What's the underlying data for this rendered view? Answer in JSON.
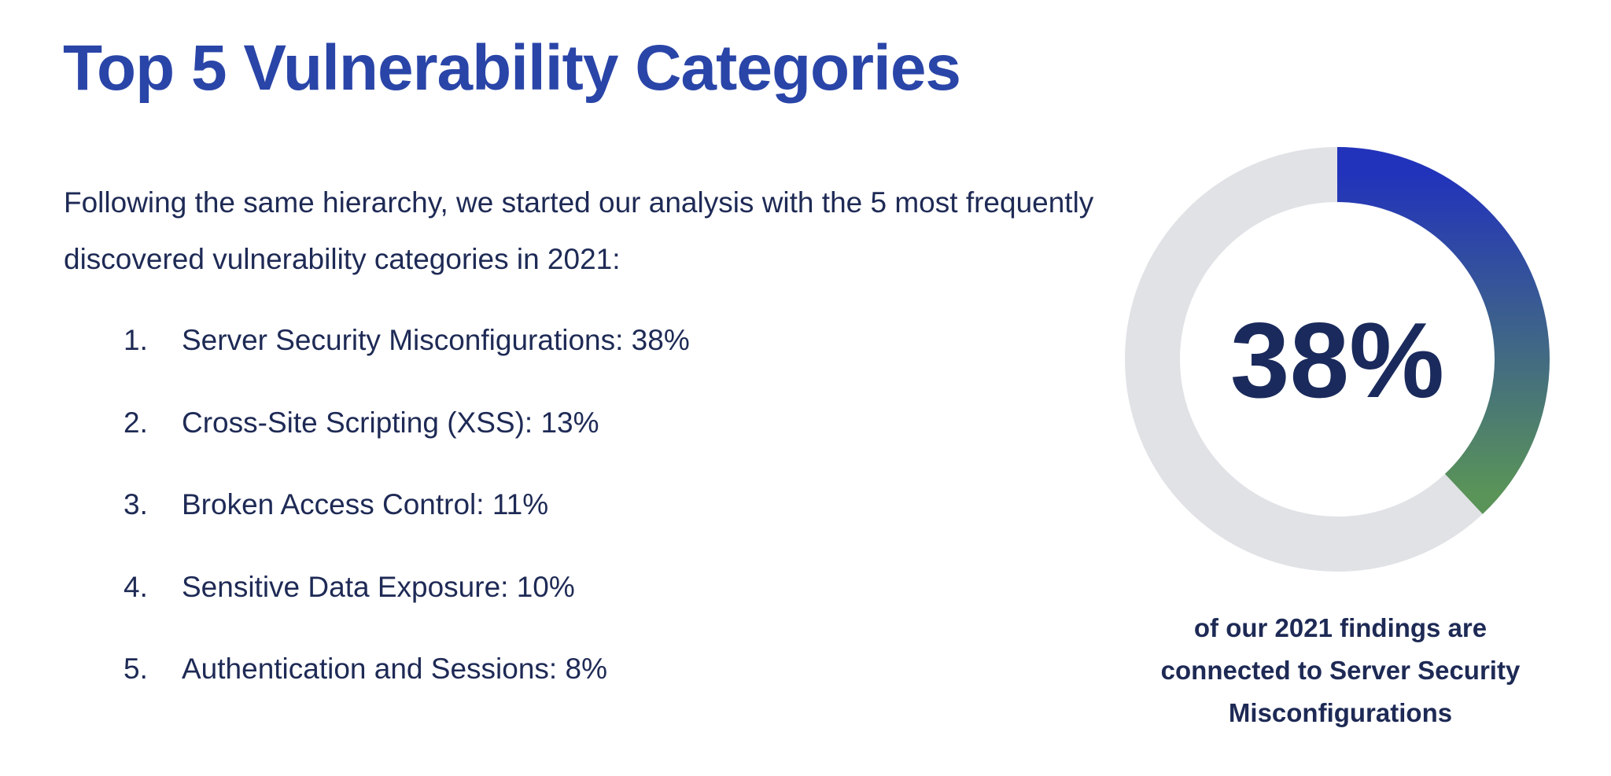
{
  "title": "Top 5 Vulnerability Categories",
  "intro": "Following the same hierarchy, we started our analysis with the 5 most frequently discovered vulnerability categories in 2021:",
  "list": [
    {
      "number": "1.",
      "text": "Server Security Misconfigurations: 38%"
    },
    {
      "number": "2.",
      "text": "Cross-Site Scripting (XSS): 13%"
    },
    {
      "number": "3.",
      "text": "Broken Access Control: 11%"
    },
    {
      "number": "4.",
      "text": "Sensitive Data Exposure: 10%"
    },
    {
      "number": "5.",
      "text": "Authentication and Sessions: 8%"
    }
  ],
  "chart_data": {
    "type": "donut",
    "values": [
      38
    ],
    "value_labels": [
      "38%"
    ],
    "color_start": "#2233bb",
    "color_end": "#5a9458",
    "track_color": "#e0e2e6",
    "caption": "of our 2021 findings are connected to Server Security Misconfigurations"
  }
}
